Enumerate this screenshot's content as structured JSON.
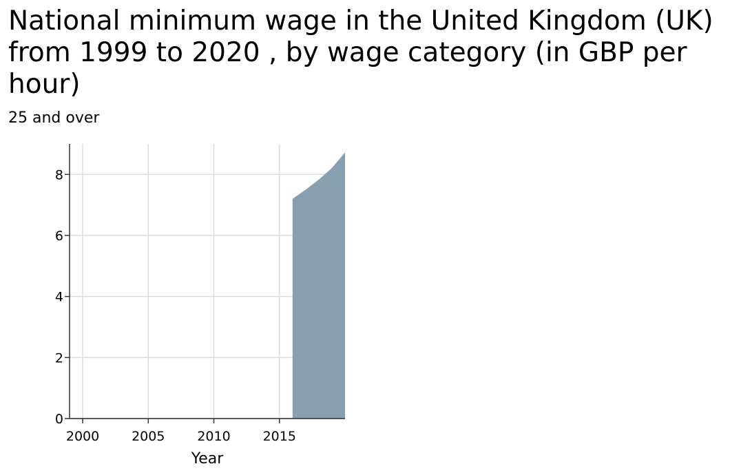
{
  "chart_data": {
    "type": "area",
    "title": "National minimum wage in the United Kingdom (UK) from 1999 to 2020 , by wage category (in GBP per hour)",
    "subtitle": "25 and over",
    "xlabel": "Year",
    "ylabel": "",
    "xlim": [
      1999,
      2020
    ],
    "ylim": [
      0,
      9
    ],
    "x_ticks": [
      2000,
      2005,
      2010,
      2015
    ],
    "y_ticks": [
      0,
      2,
      4,
      6,
      8
    ],
    "grid": true,
    "series": [
      {
        "color": "#87a0b0",
        "x": [
          2016,
          2017,
          2018,
          2019,
          2020
        ],
        "values": [
          7.2,
          7.5,
          7.83,
          8.21,
          8.72
        ]
      }
    ]
  }
}
